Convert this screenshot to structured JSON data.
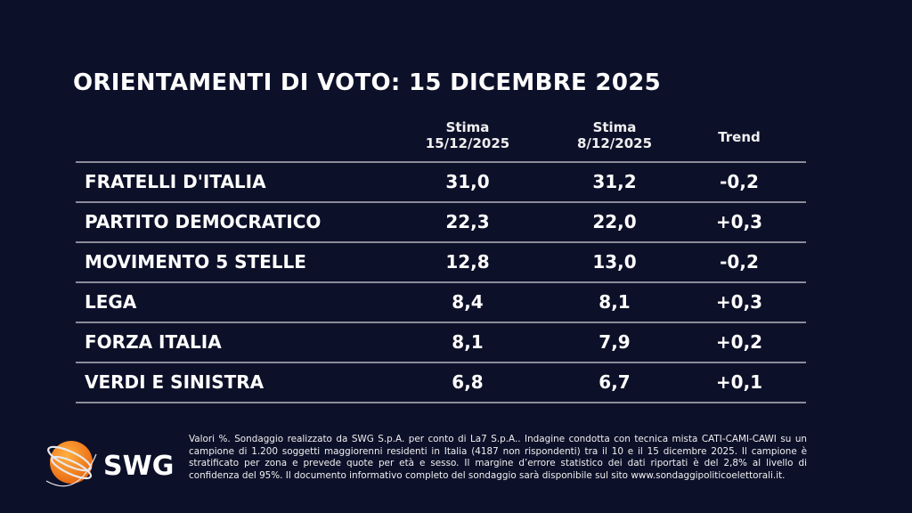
{
  "title": "ORIENTAMENTI DI VOTO: 15 DICEMBRE 2025",
  "headers": {
    "col1_line1": "Stima",
    "col1_line2": "15/12/2025",
    "col2_line1": "Stima",
    "col2_line2": "8/12/2025",
    "col3": "Trend"
  },
  "rows": [
    {
      "party": "FRATELLI D'ITALIA",
      "current": "31,0",
      "previous": "31,2",
      "trend": "-0,2"
    },
    {
      "party": "PARTITO DEMOCRATICO",
      "current": "22,3",
      "previous": "22,0",
      "trend": "+0,3"
    },
    {
      "party": "MOVIMENTO 5 STELLE",
      "current": "12,8",
      "previous": "13,0",
      "trend": "-0,2"
    },
    {
      "party": "LEGA",
      "current": "8,4",
      "previous": "8,1",
      "trend": "+0,3"
    },
    {
      "party": "FORZA ITALIA",
      "current": "8,1",
      "previous": "7,9",
      "trend": "+0,2"
    },
    {
      "party": "VERDI E SINISTRA",
      "current": "6,8",
      "previous": "6,7",
      "trend": "+0,1"
    }
  ],
  "logo": {
    "text": "SWG",
    "color": "#f28c1c"
  },
  "footnote": "Valori %. Sondaggio realizzato da SWG S.p.A. per conto di La7 S.p.A.. Indagine condotta con tecnica mista CATI-CAMI-CAWI su un campione di 1.200 soggetti maggiorenni residenti in Italia (4187 non rispondenti) tra il 10 e il 15 dicembre 2025. Il campione è stratificato per zona e prevede quote per età e sesso. Il margine d’errore statistico dei dati riportati è del 2,8% al livello di confidenza del 95%. Il documento informativo completo del sondaggio sarà disponibile sul sito www.sondaggipoliticoelettorali.it."
}
